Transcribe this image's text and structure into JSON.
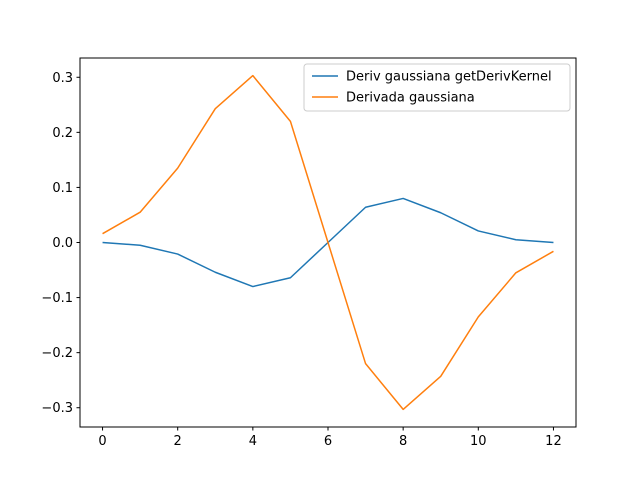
{
  "chart_data": {
    "type": "line",
    "title": "",
    "xlabel": "",
    "ylabel": "",
    "xlim": [
      -0.6,
      12.6
    ],
    "ylim": [
      -0.335,
      0.335
    ],
    "grid": false,
    "legend_position": "top-right",
    "x": [
      0,
      1,
      2,
      3,
      4,
      5,
      6,
      7,
      8,
      9,
      10,
      11,
      12
    ],
    "x_ticks": [
      0,
      2,
      4,
      6,
      8,
      10,
      12
    ],
    "y_ticks": [
      -0.3,
      -0.2,
      -0.1,
      0.0,
      0.1,
      0.2,
      0.3
    ],
    "series": [
      {
        "name": "Deriv gaussiana getDerivKernel",
        "color": "#1f77b4",
        "values": [
          0.0,
          -0.005,
          -0.021,
          -0.054,
          -0.08,
          -0.064,
          0.0,
          0.064,
          0.08,
          0.054,
          0.021,
          0.005,
          0.0
        ]
      },
      {
        "name": "Derivada gaussiana",
        "color": "#ff7f0e",
        "values": [
          0.016,
          0.055,
          0.135,
          0.243,
          0.303,
          0.22,
          0.0,
          -0.22,
          -0.303,
          -0.243,
          -0.135,
          -0.055,
          -0.016
        ]
      }
    ]
  }
}
